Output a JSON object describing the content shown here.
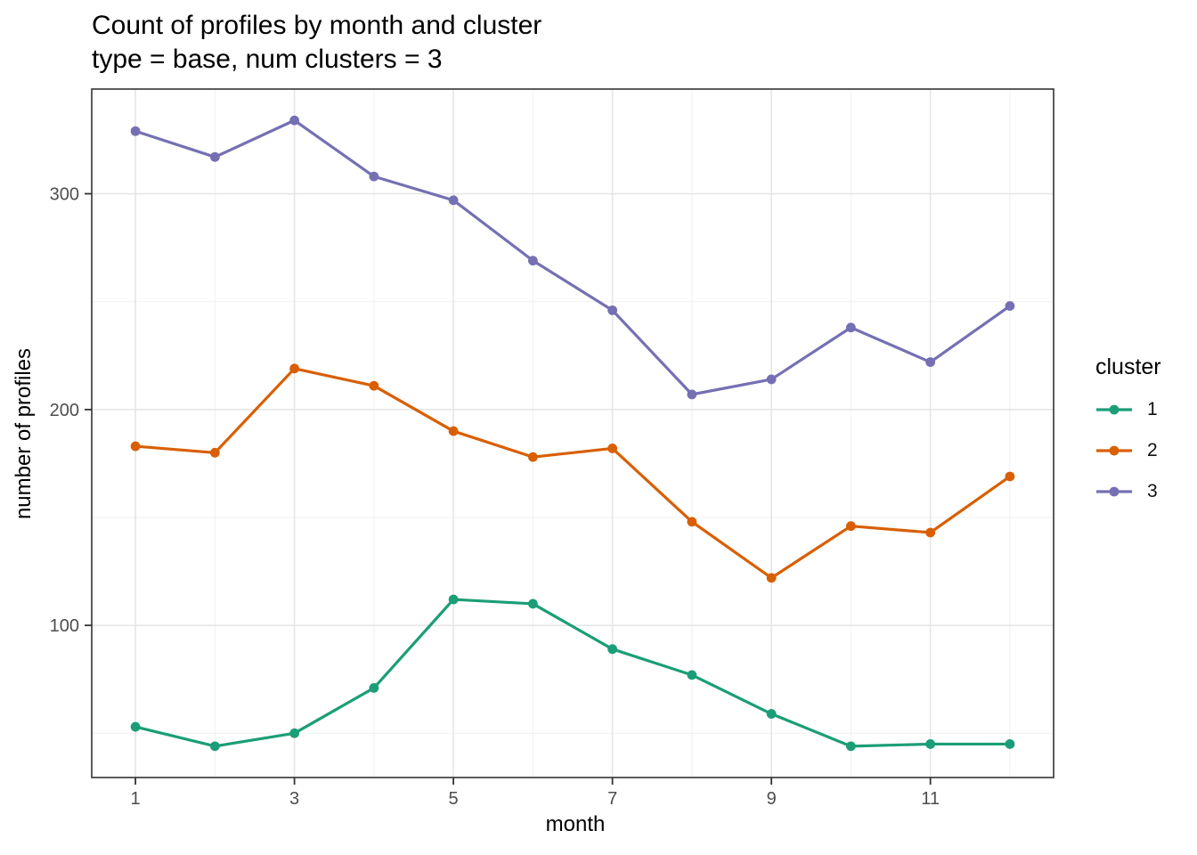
{
  "chart_data": {
    "type": "line",
    "title": "Count of profiles by month and cluster",
    "subtitle": "type = base, num clusters = 3",
    "xlabel": "month",
    "ylabel": "number of profiles",
    "x": [
      1,
      2,
      3,
      4,
      5,
      6,
      7,
      8,
      9,
      10,
      11,
      12
    ],
    "series": [
      {
        "name": "1",
        "color": "#1B9E77",
        "values": [
          53,
          44,
          50,
          71,
          112,
          110,
          89,
          77,
          59,
          44,
          45,
          45
        ]
      },
      {
        "name": "2",
        "color": "#D95F02",
        "values": [
          183,
          180,
          219,
          211,
          190,
          178,
          182,
          148,
          122,
          146,
          143,
          169
        ]
      },
      {
        "name": "3",
        "color": "#7570B3",
        "values": [
          329,
          317,
          334,
          308,
          297,
          269,
          246,
          207,
          214,
          238,
          222,
          248
        ]
      }
    ],
    "x_ticks": [
      1,
      3,
      5,
      7,
      9,
      11
    ],
    "x_minor": [
      2,
      4,
      6,
      8,
      10,
      12
    ],
    "y_ticks": [
      100,
      200,
      300
    ],
    "y_minor": [
      50,
      150,
      250
    ],
    "xlim": [
      0.45,
      12.55
    ],
    "ylim": [
      29.5,
      348.5
    ],
    "grid": true,
    "legend": {
      "title": "cluster",
      "position": "right"
    },
    "colors": {
      "tick_label": "#4D4D4D",
      "grid_major": "#E6E6E6",
      "grid_minor": "#F2F2F2",
      "panel_border": "#333333",
      "tick_mark": "#333333"
    }
  }
}
